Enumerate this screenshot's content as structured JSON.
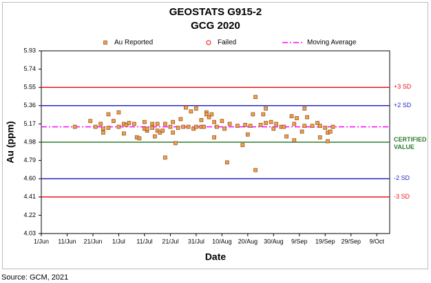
{
  "chart_data": {
    "type": "scatter",
    "title": "GEOSTATS G915-2",
    "subtitle": "GCG 2020",
    "x_label": "Date",
    "y_label": "Au (ppm)",
    "source": "Source: GCM, 2021",
    "ylim": [
      4.03,
      5.93
    ],
    "yticks": [
      4.03,
      4.22,
      4.41,
      {
        "value": 4.6,
        "label": "4.60"
      },
      4.79,
      4.98,
      5.17,
      5.36,
      5.55,
      5.74,
      5.93
    ],
    "xlim": [
      "1/Jun",
      "14/Oct"
    ],
    "xticks": [
      "1/Jun",
      "11/Jun",
      "21/Jun",
      "1/Jul",
      "11/Jul",
      "21/Jul",
      "31/Jul",
      "10/Aug",
      "20/Aug",
      "30/Aug",
      "9/Sep",
      "19/Sep",
      "29/Sep",
      "9/Oct"
    ],
    "series": [
      {
        "name": "Au Reported",
        "color": "#f0a050",
        "marker": "square",
        "x": [
          "14/Jun",
          "20/Jun",
          "22/Jun",
          "24/Jun",
          "25/Jun",
          "25/Jun",
          "27/Jun",
          "27/Jun",
          "29/Jun",
          "1/Jul",
          "1/Jul",
          "3/Jul",
          "3/Jul",
          "4/Jul",
          "5/Jul",
          "7/Jul",
          "8/Jul",
          "9/Jul",
          "11/Jul",
          "11/Jul",
          "12/Jul",
          "12/Jul",
          "14/Jul",
          "14/Jul",
          "15/Jul",
          "16/Jul",
          "16/Jul",
          "17/Jul",
          "18/Jul",
          "19/Jul",
          "19/Jul",
          "21/Jul",
          "22/Jul",
          "22/Jul",
          "23/Jul",
          "24/Jul",
          "25/Jul",
          "26/Jul",
          "27/Jul",
          "28/Jul",
          "29/Jul",
          "30/Jul",
          "31/Jul",
          "31/Jul",
          "2/Aug",
          "2/Aug",
          "3/Aug",
          "4/Aug",
          "4/Aug",
          "5/Aug",
          "6/Aug",
          "7/Aug",
          "7/Aug",
          "8/Aug",
          "10/Aug",
          "11/Aug",
          "12/Aug",
          "13/Aug",
          "16/Aug",
          "18/Aug",
          "19/Aug",
          "20/Aug",
          "21/Aug",
          "22/Aug",
          "23/Aug",
          "23/Aug",
          "25/Aug",
          "26/Aug",
          "27/Aug",
          "27/Aug",
          "29/Aug",
          "30/Aug",
          "31/Aug",
          "2/Sep",
          "3/Sep",
          "4/Sep",
          "6/Sep",
          "7/Sep",
          "7/Sep",
          "8/Sep",
          "10/Sep",
          "11/Sep",
          "11/Sep",
          "12/Sep",
          "14/Sep",
          "16/Sep",
          "17/Sep",
          "17/Sep",
          "19/Sep",
          "20/Sep",
          "20/Sep",
          "21/Sep",
          "22/Sep"
        ],
        "values": [
          5.14,
          5.2,
          5.14,
          5.17,
          5.08,
          5.12,
          5.27,
          5.13,
          5.2,
          5.29,
          5.14,
          5.07,
          5.17,
          5.16,
          5.18,
          5.17,
          5.03,
          5.02,
          5.19,
          5.12,
          5.1,
          5.12,
          5.17,
          5.13,
          5.04,
          5.17,
          5.1,
          5.08,
          5.1,
          4.82,
          5.17,
          5.14,
          5.08,
          5.19,
          4.97,
          5.13,
          5.22,
          5.14,
          5.34,
          5.14,
          5.3,
          5.12,
          5.14,
          5.33,
          5.21,
          5.14,
          5.14,
          5.29,
          5.27,
          5.24,
          5.27,
          5.19,
          5.03,
          5.14,
          5.2,
          5.12,
          4.77,
          5.17,
          5.15,
          4.95,
          5.16,
          5.06,
          5.15,
          5.27,
          5.45,
          4.69,
          5.16,
          5.27,
          5.33,
          5.18,
          5.19,
          5.12,
          5.17,
          5.14,
          5.14,
          5.04,
          5.25,
          5.0,
          5.17,
          5.23,
          5.09,
          5.15,
          5.33,
          5.24,
          5.15,
          5.18,
          5.03,
          5.15,
          5.13,
          5.08,
          4.99,
          5.09,
          5.14
        ]
      },
      {
        "name": "Failed",
        "color": "#ff0000",
        "marker": "circle",
        "x": [],
        "values": []
      }
    ],
    "moving_average": {
      "name": "Moving Average",
      "value": 5.14,
      "color": "#ff00ff"
    },
    "reference_lines": [
      {
        "label": "+3 SD",
        "value": 5.55,
        "color": "#e8141c"
      },
      {
        "label": "+2 SD",
        "value": 5.36,
        "color": "#2626c8"
      },
      {
        "label": "CERTIFIED VALUE",
        "value": 4.98,
        "color": "#2e7d2e"
      },
      {
        "label": "-2 SD",
        "value": 4.6,
        "color": "#2626c8"
      },
      {
        "label": "-3 SD",
        "value": 4.41,
        "color": "#e8141c"
      }
    ]
  }
}
